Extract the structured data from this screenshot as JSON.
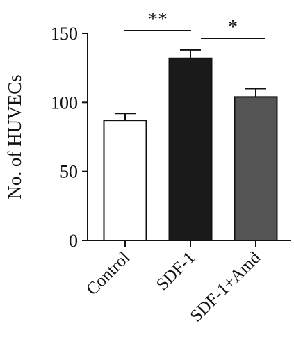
{
  "chart_data": {
    "type": "bar",
    "ylabel": "No. of HUVECs",
    "ylim": [
      0,
      150
    ],
    "yticks": [
      0,
      50,
      100,
      150
    ],
    "categories": [
      "Control",
      "SDF-1",
      "SDF-1+Amd"
    ],
    "values": [
      87,
      132,
      104
    ],
    "errors": [
      5,
      6,
      6
    ],
    "bar_colors": [
      "#ffffff",
      "#1a1a1a",
      "#555555"
    ],
    "significance": [
      {
        "from": 0,
        "to": 1,
        "label": "**"
      },
      {
        "from": 1,
        "to": 2,
        "label": "*"
      }
    ],
    "grid": false,
    "legend": "none"
  }
}
